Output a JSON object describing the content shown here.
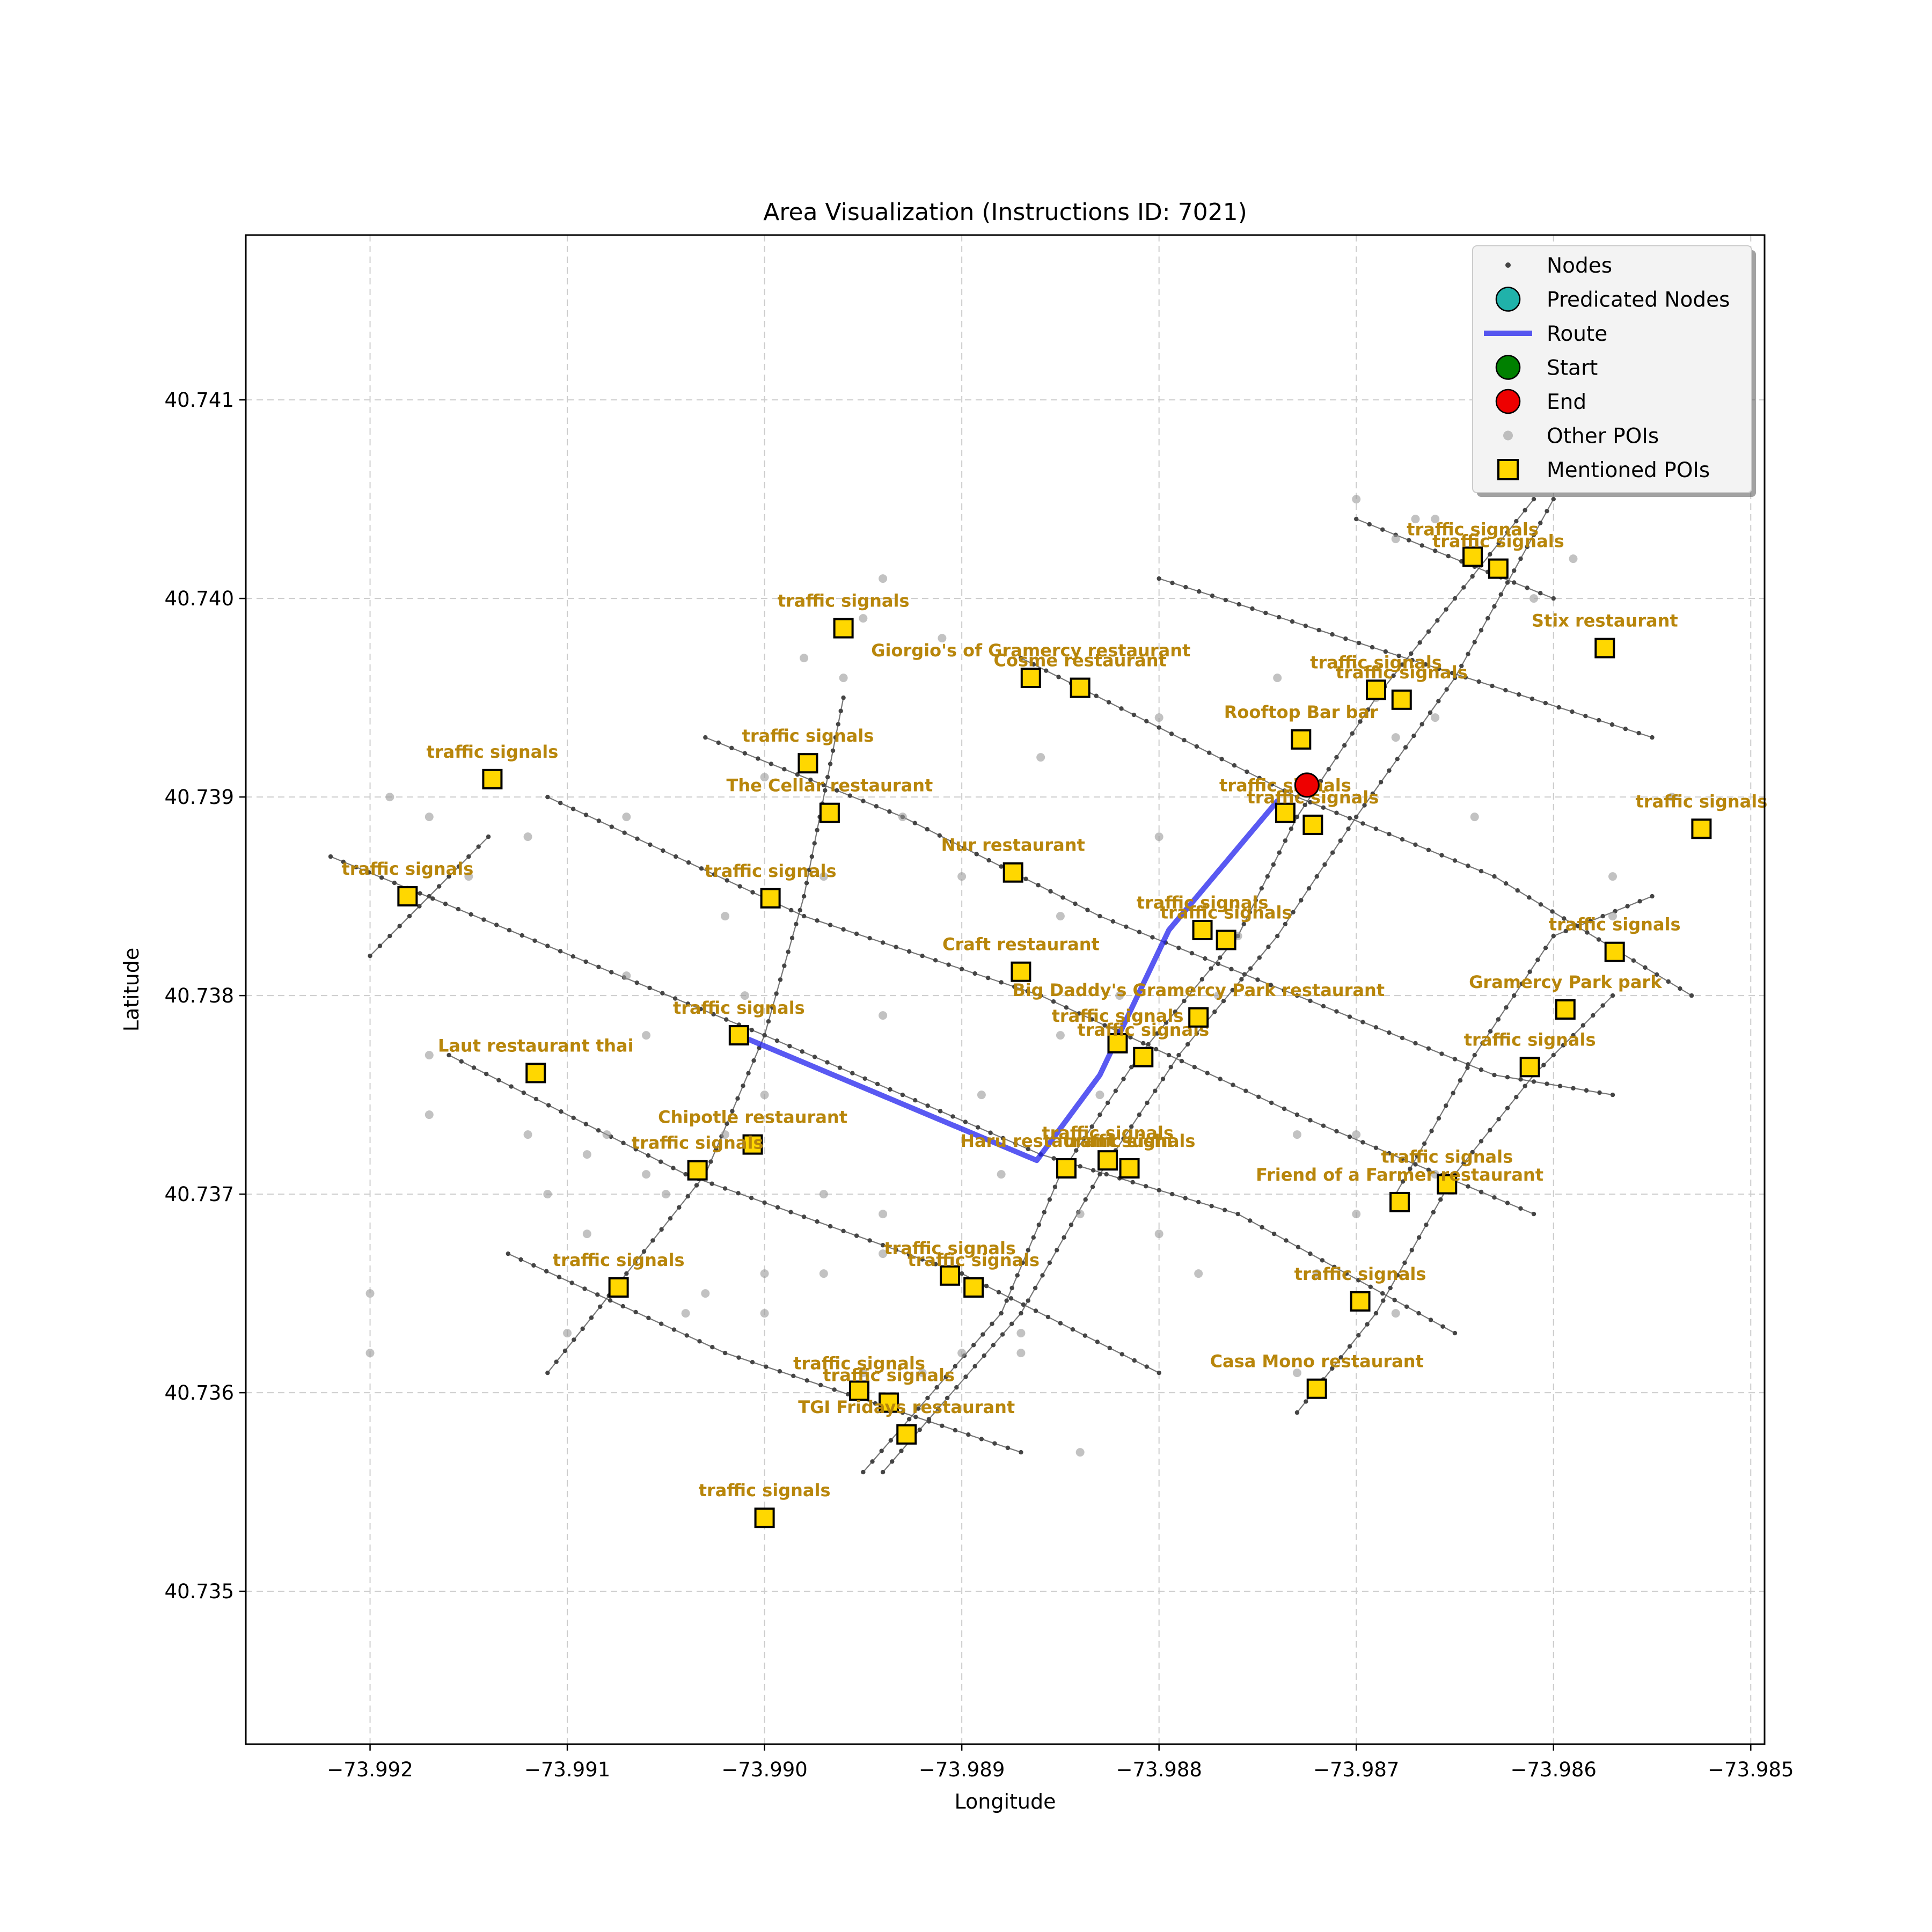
{
  "title": "Area Visualization (Instructions ID: 7021)",
  "chart_data": {
    "type": "scatter",
    "title": "Area Visualization (Instructions ID: 7021)",
    "xlabel": "Longitude",
    "ylabel": "Latitude",
    "xlim": [
      -73.99263,
      -73.98493
    ],
    "ylim": [
      40.73423,
      40.74183
    ],
    "x_ticks": [
      -73.992,
      -73.991,
      -73.99,
      -73.989,
      -73.988,
      -73.987,
      -73.986,
      -73.985
    ],
    "x_tick_labels": [
      "−73.992",
      "−73.991",
      "−73.990",
      "−73.989",
      "−73.988",
      "−73.987",
      "−73.986",
      "−73.985"
    ],
    "y_ticks": [
      40.735,
      40.736,
      40.737,
      40.738,
      40.739,
      40.74,
      40.741
    ],
    "y_tick_labels": [
      "40.735",
      "40.736",
      "40.737",
      "40.738",
      "40.739",
      "40.740",
      "40.741"
    ],
    "grid": true,
    "legend_position": "top-right",
    "legend": [
      {
        "label": "Nodes",
        "marker": "small-dot"
      },
      {
        "label": "Predicated Nodes",
        "marker": "teal-circle"
      },
      {
        "label": "Route",
        "marker": "line"
      },
      {
        "label": "Start",
        "marker": "green-circle"
      },
      {
        "label": "End",
        "marker": "red-circle"
      },
      {
        "label": "Other POIs",
        "marker": "gray-dot"
      },
      {
        "label": "Mentioned POIs",
        "marker": "yellow-square"
      }
    ],
    "colors": {
      "node": "#444444",
      "street": "#555555",
      "route": "#2222ee",
      "start": "#008000",
      "end": "#ee0000",
      "predicated": "#20b2aa",
      "other_poi": "#999999",
      "poi_fill": "#ffd700",
      "poi_label": "#b8860b",
      "grid": "#cccccc"
    },
    "streets": [
      [
        [
          -73.988,
          40.7401
        ],
        [
          -73.9855,
          40.7393
        ]
      ],
      [
        [
          -73.9887,
          40.7397
        ],
        [
          -73.9873,
          40.739
        ],
        [
          -73.9863,
          40.7386
        ],
        [
          -73.9853,
          40.738
        ]
      ],
      [
        [
          -73.9903,
          40.7393
        ],
        [
          -73.9893,
          40.7389
        ],
        [
          -73.9883,
          40.7384
        ],
        [
          -73.9873,
          40.738
        ],
        [
          -73.9863,
          40.7376
        ],
        [
          -73.9857,
          40.7375
        ]
      ],
      [
        [
          -73.9911,
          40.739
        ],
        [
          -73.9898,
          40.7384
        ],
        [
          -73.9886,
          40.738
        ],
        [
          -73.9873,
          40.7374
        ],
        [
          -73.9861,
          40.7369
        ]
      ],
      [
        [
          -73.9922,
          40.7387
        ],
        [
          -73.99,
          40.7378
        ],
        [
          -73.9886,
          40.7372
        ],
        [
          -73.9876,
          40.7369
        ],
        [
          -73.9865,
          40.7363
        ]
      ],
      [
        [
          -73.9916,
          40.7377
        ],
        [
          -73.9904,
          40.7371
        ],
        [
          -73.989,
          40.7366
        ],
        [
          -73.988,
          40.7361
        ]
      ],
      [
        [
          -73.9913,
          40.7367
        ],
        [
          -73.9902,
          40.7362
        ],
        [
          -73.9893,
          40.7359
        ],
        [
          -73.9887,
          40.7357
        ]
      ],
      [
        [
          -73.987,
          40.7404
        ],
        [
          -73.986,
          40.74
        ]
      ],
      [
        [
          -73.992,
          40.7382
        ],
        [
          -73.9914,
          40.7388
        ]
      ],
      [
        [
          -73.9911,
          40.7361
        ],
        [
          -73.9903,
          40.7371
        ],
        [
          -73.99,
          40.7378
        ],
        [
          -73.9898,
          40.7385
        ],
        [
          -73.9896,
          40.7395
        ]
      ],
      [
        [
          -73.9895,
          40.7356
        ],
        [
          -73.9888,
          40.7364
        ],
        [
          -73.9885,
          40.7371
        ],
        [
          -73.9881,
          40.7377
        ],
        [
          -73.9876,
          40.7383
        ],
        [
          -73.9873,
          40.7389
        ],
        [
          -73.9869,
          40.7395
        ],
        [
          -73.9865,
          40.74
        ],
        [
          -73.9861,
          40.7405
        ]
      ],
      [
        [
          -73.9894,
          40.7356
        ],
        [
          -73.9887,
          40.7364
        ],
        [
          -73.9883,
          40.7371
        ],
        [
          -73.9879,
          40.7377
        ],
        [
          -73.9874,
          40.7383
        ],
        [
          -73.987,
          40.7389
        ],
        [
          -73.9865,
          40.7396
        ],
        [
          -73.986,
          40.7405
        ]
      ],
      [
        [
          -73.9873,
          40.7359
        ],
        [
          -73.9869,
          40.7364
        ],
        [
          -73.9865,
          40.7371
        ],
        [
          -73.9861,
          40.7376
        ],
        [
          -73.9857,
          40.738
        ]
      ],
      [
        [
          -73.9868,
          40.737
        ],
        [
          -73.9864,
          40.7377
        ],
        [
          -73.986,
          40.7383
        ],
        [
          -73.9855,
          40.7385
        ]
      ]
    ],
    "route": [
      [
        -73.99013,
        40.7378
      ],
      [
        -73.98862,
        40.73717
      ],
      [
        -73.9883,
        40.7376
      ],
      [
        -73.98795,
        40.73833
      ],
      [
        -73.9874,
        40.73898
      ]
    ],
    "start": [
      -73.99013,
      40.7378
    ],
    "end": [
      -73.98725,
      40.73906
    ],
    "other_pois": [
      [
        -73.9894,
        40.7401
      ],
      [
        -73.9898,
        40.7397
      ],
      [
        -73.9895,
        40.7399
      ],
      [
        -73.9891,
        40.7398
      ],
      [
        -73.9886,
        40.7392
      ],
      [
        -73.988,
        40.7394
      ],
      [
        -73.9874,
        40.7396
      ],
      [
        -73.9869,
        40.7395
      ],
      [
        -73.9866,
        40.7394
      ],
      [
        -73.9864,
        40.7389
      ],
      [
        -73.9868,
        40.7393
      ],
      [
        -73.9866,
        40.7404
      ],
      [
        -73.9861,
        40.74
      ],
      [
        -73.9859,
        40.7402
      ],
      [
        -73.987,
        40.7405
      ],
      [
        -73.9868,
        40.7403
      ],
      [
        -73.9867,
        40.7404
      ],
      [
        -73.9919,
        40.739
      ],
      [
        -73.9917,
        40.7389
      ],
      [
        -73.9915,
        40.7386
      ],
      [
        -73.9912,
        40.7388
      ],
      [
        -73.9907,
        40.7389
      ],
      [
        -73.9902,
        40.7384
      ],
      [
        -73.9902,
        40.7373
      ],
      [
        -73.9907,
        40.7381
      ],
      [
        -73.99,
        40.7391
      ],
      [
        -73.9897,
        40.7386
      ],
      [
        -73.9893,
        40.7389
      ],
      [
        -73.989,
        40.7386
      ],
      [
        -73.9894,
        40.7379
      ],
      [
        -73.9905,
        40.737
      ],
      [
        -73.9908,
        40.7373
      ],
      [
        -73.9909,
        40.7372
      ],
      [
        -73.9906,
        40.7371
      ],
      [
        -73.9911,
        40.737
      ],
      [
        -73.9909,
        40.7368
      ],
      [
        -73.9904,
        40.7364
      ],
      [
        -73.99,
        40.7375
      ],
      [
        -73.9897,
        40.7366
      ],
      [
        -73.99,
        40.7364
      ],
      [
        -73.9897,
        40.737
      ],
      [
        -73.9894,
        40.7369
      ],
      [
        -73.9894,
        40.7367
      ],
      [
        -73.9889,
        40.7375
      ],
      [
        -73.9892,
        40.7361
      ],
      [
        -73.989,
        40.7362
      ],
      [
        -73.9887,
        40.7362
      ],
      [
        -73.9884,
        40.7369
      ],
      [
        -73.9883,
        40.7375
      ],
      [
        -73.988,
        40.7368
      ],
      [
        -73.9876,
        40.7383
      ],
      [
        -73.987,
        40.7373
      ],
      [
        -73.9872,
        40.7366
      ],
      [
        -73.9868,
        40.7364
      ],
      [
        -73.9857,
        40.7386
      ],
      [
        -73.9857,
        40.7384
      ],
      [
        -73.9854,
        40.739
      ],
      [
        -73.9917,
        40.7377
      ],
      [
        -73.9912,
        40.7373
      ],
      [
        -73.9917,
        40.7374
      ],
      [
        -73.9906,
        40.7378
      ],
      [
        -73.9885,
        40.7384
      ],
      [
        -73.988,
        40.7388
      ],
      [
        -73.9877,
        40.738
      ],
      [
        -73.9873,
        40.7373
      ],
      [
        -73.987,
        40.7369
      ],
      [
        -73.9866,
        40.7371
      ],
      [
        -73.9884,
        40.7357
      ],
      [
        -73.9887,
        40.7363
      ],
      [
        -73.9878,
        40.7366
      ],
      [
        -73.9873,
        40.7361
      ],
      [
        -73.992,
        40.7365
      ],
      [
        -73.992,
        40.7362
      ],
      [
        -73.99,
        40.7366
      ],
      [
        -73.9903,
        40.7365
      ],
      [
        -73.9901,
        40.738
      ],
      [
        -73.9898,
        40.7392
      ],
      [
        -73.9896,
        40.7396
      ],
      [
        -73.9882,
        40.738
      ],
      [
        -73.9885,
        40.7378
      ],
      [
        -73.991,
        40.7363
      ],
      [
        -73.9895,
        40.7361
      ],
      [
        -73.9888,
        40.7371
      ]
    ],
    "mentioned_pois": [
      {
        "label": "traffic signals",
        "x": -73.9896,
        "y": 40.73985
      },
      {
        "label": "Giorgio's of Gramercy restaurant",
        "x": -73.98865,
        "y": 40.7396
      },
      {
        "label": "Cosme restaurant",
        "x": -73.9884,
        "y": 40.73955
      },
      {
        "label": "traffic signals",
        "x": -73.98978,
        "y": 40.73917
      },
      {
        "label": "The Cellar restaurant",
        "x": -73.98967,
        "y": 40.73892
      },
      {
        "label": "traffic signals",
        "x": -73.99138,
        "y": 40.73909
      },
      {
        "label": "traffic signals",
        "x": -73.99181,
        "y": 40.7385
      },
      {
        "label": "traffic signals",
        "x": -73.98997,
        "y": 40.73849
      },
      {
        "label": "Nur restaurant",
        "x": -73.98874,
        "y": 40.73862
      },
      {
        "label": "Craft restaurant",
        "x": -73.9887,
        "y": 40.73812
      },
      {
        "label": "traffic signals",
        "x": -73.99013,
        "y": 40.7378
      },
      {
        "label": "Laut restaurant thai",
        "x": -73.99116,
        "y": 40.73761
      },
      {
        "label": "Chipotle restaurant",
        "x": -73.99006,
        "y": 40.73725
      },
      {
        "label": "traffic signals",
        "x": -73.99034,
        "y": 40.73712
      },
      {
        "label": "Haru restaurant sushi",
        "x": -73.98847,
        "y": 40.73713
      },
      {
        "label": "traffic signals",
        "x": -73.98826,
        "y": 40.73717
      },
      {
        "label": "traffic signals",
        "x": -73.98815,
        "y": 40.73713
      },
      {
        "label": "traffic signals",
        "x": -73.99074,
        "y": 40.73653
      },
      {
        "label": "traffic signals",
        "x": -73.98906,
        "y": 40.73659
      },
      {
        "label": "traffic signals",
        "x": -73.98894,
        "y": 40.73653
      },
      {
        "label": "traffic signals",
        "x": -73.98952,
        "y": 40.73601
      },
      {
        "label": "traffic signals",
        "x": -73.98937,
        "y": 40.73595
      },
      {
        "label": "TGI Fridays restaurant",
        "x": -73.98928,
        "y": 40.73579
      },
      {
        "label": "traffic signals",
        "x": -73.99,
        "y": 40.73537
      },
      {
        "label": "traffic signals",
        "x": -73.98821,
        "y": 40.73776
      },
      {
        "label": "traffic signals",
        "x": -73.98808,
        "y": 40.73769
      },
      {
        "label": "Big Daddy's Gramercy Park restaurant",
        "x": -73.9878,
        "y": 40.73789
      },
      {
        "label": "traffic signals",
        "x": -73.98778,
        "y": 40.73833
      },
      {
        "label": "traffic signals",
        "x": -73.98766,
        "y": 40.73828
      },
      {
        "label": "traffic signals",
        "x": -73.98736,
        "y": 40.73892
      },
      {
        "label": "traffic signals",
        "x": -73.98722,
        "y": 40.73886
      },
      {
        "label": "Rooftop Bar bar",
        "x": -73.98728,
        "y": 40.73929
      },
      {
        "label": "traffic signals",
        "x": -73.9869,
        "y": 40.73954
      },
      {
        "label": "traffic signals",
        "x": -73.98677,
        "y": 40.73949
      },
      {
        "label": "traffic signals",
        "x": -73.98641,
        "y": 40.74021
      },
      {
        "label": "traffic signals",
        "x": -73.98628,
        "y": 40.74015
      },
      {
        "label": "Stix restaurant",
        "x": -73.98574,
        "y": 40.73975
      },
      {
        "label": "traffic signals",
        "x": -73.98525,
        "y": 40.73884
      },
      {
        "label": "traffic signals",
        "x": -73.98569,
        "y": 40.73822
      },
      {
        "label": "Gramercy Park   park",
        "x": -73.98594,
        "y": 40.73793
      },
      {
        "label": "traffic signals",
        "x": -73.98612,
        "y": 40.73764
      },
      {
        "label": "traffic signals",
        "x": -73.98654,
        "y": 40.73705
      },
      {
        "label": "Friend of a Farmer restaurant",
        "x": -73.98678,
        "y": 40.73696
      },
      {
        "label": "traffic signals",
        "x": -73.98698,
        "y": 40.73646
      },
      {
        "label": "Casa Mono restaurant",
        "x": -73.9872,
        "y": 40.73602
      }
    ]
  }
}
